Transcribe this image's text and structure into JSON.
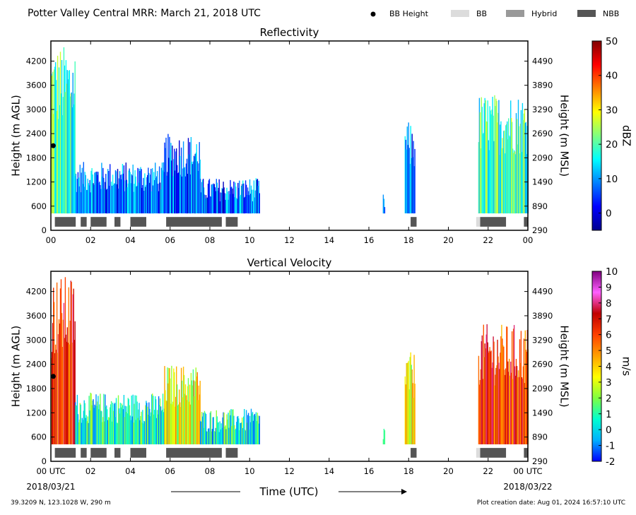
{
  "title": "Potter Valley Central MRR:  March 21, 2018 UTC",
  "legend": [
    {
      "label": "BB Height",
      "kind": "dot",
      "color": "#000000"
    },
    {
      "label": "BB",
      "kind": "patch",
      "color": "#dcdcdc"
    },
    {
      "label": "Hybrid",
      "kind": "patch",
      "color": "#999999"
    },
    {
      "label": "NBB",
      "kind": "patch",
      "color": "#555555"
    }
  ],
  "footer": {
    "location": "39.3209 N, 123.1028 W, 290 m",
    "creation": "Plot creation date: Aug 01, 2024 16:57:10 UTC",
    "x_axis_title": "Time (UTC)",
    "start_date": "2018/03/21",
    "end_date": "2018/03/22"
  },
  "colors": {
    "reflectivity_stops": [
      "#00008f",
      "#0000ff",
      "#0080ff",
      "#00ffff",
      "#80ff80",
      "#ffff00",
      "#ff8000",
      "#ff0000",
      "#800000"
    ],
    "velocity_stops": [
      "#0000ff",
      "#00b0ff",
      "#00ffd0",
      "#80ff40",
      "#ffff00",
      "#ffa000",
      "#ff4000",
      "#c00000",
      "#ff60ff",
      "#800080"
    ]
  },
  "chart_data": [
    {
      "type": "heatmap",
      "title": "Reflectivity",
      "xlabel": "",
      "ylabel": "Height (m AGL)",
      "y2label": "Height (m MSL)",
      "xlim": [
        0,
        24
      ],
      "ylim": [
        0,
        4700
      ],
      "x_ticks": [
        "00",
        "02",
        "04",
        "06",
        "08",
        "10",
        "12",
        "14",
        "16",
        "18",
        "20",
        "22",
        "00"
      ],
      "y_ticks": [
        0,
        600,
        1200,
        1800,
        2400,
        3000,
        3600,
        4200
      ],
      "y2_ticks": [
        290,
        890,
        1490,
        2090,
        2690,
        3290,
        3890,
        4490
      ],
      "colorbar": {
        "label": "dBZ",
        "min": -5,
        "max": 50,
        "ticks": [
          0,
          10,
          20,
          30,
          40,
          50
        ]
      },
      "bb_height_points": [
        {
          "x": 0.12,
          "y": 2100
        }
      ],
      "echo_segments": [
        {
          "start": 0.0,
          "end": 1.2,
          "top": 4600,
          "intensity": "moderate"
        },
        {
          "start": 1.2,
          "end": 5.7,
          "top": 1700,
          "intensity": "low"
        },
        {
          "start": 5.7,
          "end": 7.5,
          "top": 2400,
          "intensity": "low"
        },
        {
          "start": 7.5,
          "end": 10.5,
          "top": 1300,
          "intensity": "low"
        },
        {
          "start": 16.7,
          "end": 16.8,
          "top": 900,
          "intensity": "low"
        },
        {
          "start": 17.8,
          "end": 18.3,
          "top": 2700,
          "intensity": "low"
        },
        {
          "start": 21.5,
          "end": 24.0,
          "top": 3400,
          "intensity": "moderate"
        }
      ],
      "nbb_segments": [
        [
          0.2,
          1.25
        ],
        [
          1.5,
          1.8
        ],
        [
          2.0,
          2.8
        ],
        [
          3.2,
          3.5
        ],
        [
          4.0,
          4.8
        ],
        [
          5.8,
          8.6
        ],
        [
          8.8,
          9.4
        ],
        [
          18.1,
          18.4
        ],
        [
          21.6,
          22.9
        ],
        [
          23.8,
          24.0
        ]
      ],
      "bb_segments": [
        [
          21.4,
          21.6
        ]
      ],
      "hybrid_segments": []
    },
    {
      "type": "heatmap",
      "title": "Vertical Velocity",
      "xlabel": "Time (UTC)",
      "ylabel": "Height (m AGL)",
      "y2label": "Height (m MSL)",
      "xlim": [
        0,
        24
      ],
      "ylim": [
        0,
        4700
      ],
      "x_ticks": [
        "00 UTC",
        "02",
        "04",
        "06",
        "08",
        "10",
        "12",
        "14",
        "16",
        "18",
        "20",
        "22",
        "00 UTC"
      ],
      "y_ticks": [
        0,
        600,
        1200,
        1800,
        2400,
        3000,
        3600,
        4200
      ],
      "y2_ticks": [
        290,
        890,
        1490,
        2090,
        2690,
        3290,
        3890,
        4490
      ],
      "colorbar": {
        "label": "m/s",
        "min": -2,
        "max": 10,
        "ticks": [
          -2,
          -1,
          0,
          1,
          2,
          3,
          4,
          5,
          6,
          7,
          8,
          9,
          10
        ]
      },
      "bb_height_points": [
        {
          "x": 0.12,
          "y": 2100
        }
      ],
      "echo_segments": [
        {
          "start": 0.0,
          "end": 1.2,
          "top": 4600,
          "intensity": "high"
        },
        {
          "start": 1.2,
          "end": 5.7,
          "top": 1700,
          "intensity": "low"
        },
        {
          "start": 5.7,
          "end": 7.5,
          "top": 2400,
          "intensity": "moderate"
        },
        {
          "start": 7.5,
          "end": 10.5,
          "top": 1300,
          "intensity": "low"
        },
        {
          "start": 16.7,
          "end": 16.8,
          "top": 900,
          "intensity": "low"
        },
        {
          "start": 17.8,
          "end": 18.3,
          "top": 2700,
          "intensity": "moderate"
        },
        {
          "start": 21.5,
          "end": 24.0,
          "top": 3400,
          "intensity": "high"
        }
      ],
      "nbb_segments": [
        [
          0.2,
          1.25
        ],
        [
          1.5,
          1.8
        ],
        [
          2.0,
          2.8
        ],
        [
          3.2,
          3.5
        ],
        [
          4.0,
          4.8
        ],
        [
          5.8,
          8.6
        ],
        [
          8.8,
          9.4
        ],
        [
          18.1,
          18.4
        ],
        [
          21.6,
          22.9
        ],
        [
          23.8,
          24.0
        ]
      ],
      "bb_segments": [
        [
          21.4,
          21.6
        ]
      ],
      "hybrid_segments": []
    }
  ]
}
